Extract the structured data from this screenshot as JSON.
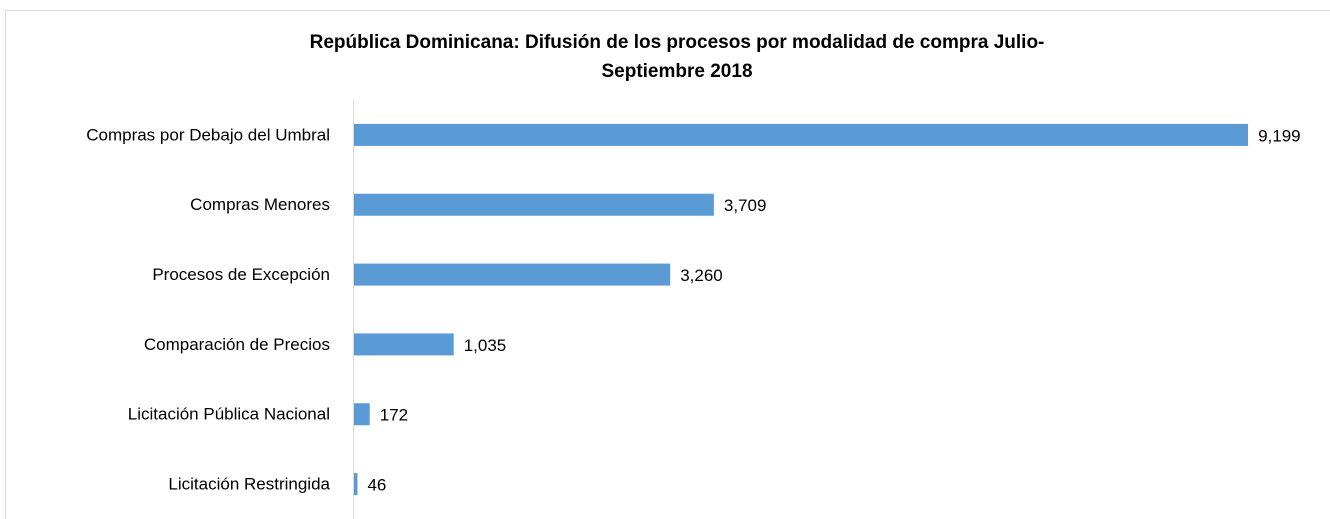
{
  "chart_data": {
    "type": "bar",
    "orientation": "horizontal",
    "title": [
      "República Dominicana: Difusión de los procesos por modalidad de compra Julio-",
      "Septiembre 2018"
    ],
    "categories": [
      "Compras por Debajo del Umbral",
      "Compras Menores",
      "Procesos de Excepción",
      "Comparación de Precios",
      "Licitación Pública Nacional",
      "Licitación Restringida"
    ],
    "values": [
      9199,
      3709,
      3260,
      1035,
      172,
      46
    ],
    "value_labels": [
      "9,199",
      "3,709",
      "3,260",
      "1,035",
      "172",
      "46"
    ],
    "color": "#5b9bd5",
    "xlim": [
      0,
      10000
    ]
  }
}
